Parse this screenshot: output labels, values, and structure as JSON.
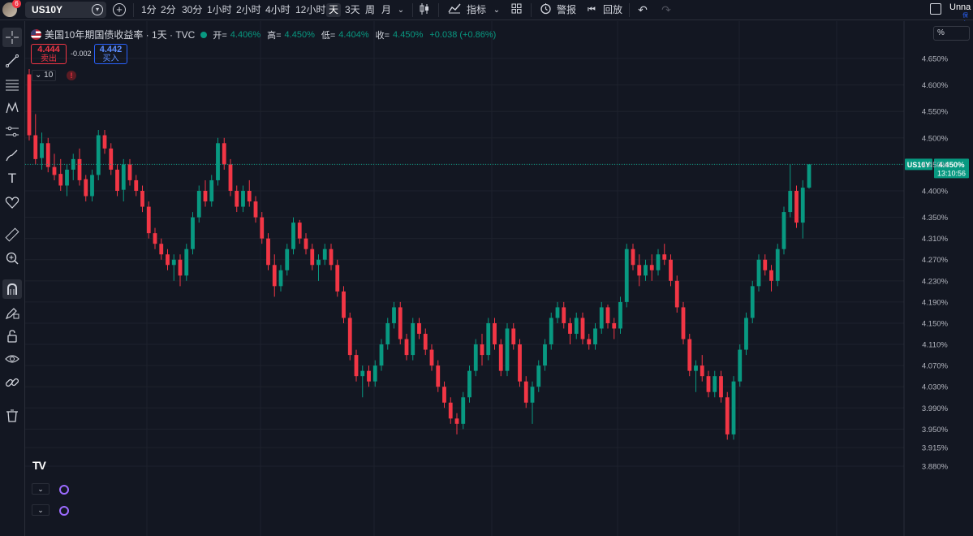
{
  "toolbar": {
    "avatar_badge": "6",
    "symbol": "US10Y",
    "intervals": [
      "1分",
      "2分",
      "30分",
      "1小时",
      "2小时",
      "4小时",
      "12小时",
      "天",
      "3天",
      "周",
      "月"
    ],
    "active_interval": "天",
    "indicators_label": "指标",
    "alerts_label": "警报",
    "replay_label": "回放",
    "layout_name": "Unna",
    "layout_sub": "保存"
  },
  "legend": {
    "title": "美国10年期国债收益率 · 1天 · TVC",
    "open_label": "开=",
    "open": "4.406%",
    "high_label": "高=",
    "high": "4.450%",
    "low_label": "低=",
    "low": "4.404%",
    "close_label": "收=",
    "close": "4.450%",
    "change": "+0.038 (+0.86%)"
  },
  "trade": {
    "bid": "4.444",
    "bid_label": "卖出",
    "spread": "-0.002",
    "ask": "4.442",
    "ask_label": "买入"
  },
  "indicator_count": "10",
  "scale_mode": "%",
  "colors": {
    "up": "#089981",
    "down": "#f23645",
    "background": "#131722",
    "grid": "#1e222d",
    "price_line": "#089981"
  },
  "icons": [
    "crosshair-icon",
    "trend-line-icon",
    "fib-icon",
    "pattern-icon",
    "forecast-icon",
    "brush-icon",
    "text-icon",
    "heart-icon",
    "ruler-icon",
    "zoom-icon",
    "magnet-icon",
    "lock-drawing-icon",
    "lock-icon",
    "eye-icon",
    "link-icon",
    "trash-icon"
  ],
  "chart_data": {
    "type": "candlestick",
    "title": "美国10年期国债收益率 · 1天 · TVC",
    "y_ticks": [
      "4.650%",
      "4.600%",
      "4.550%",
      "4.500%",
      "4.450%",
      "4.400%",
      "4.350%",
      "4.310%",
      "4.270%",
      "4.230%",
      "4.190%",
      "4.150%",
      "4.110%",
      "4.070%",
      "4.030%",
      "3.990%",
      "3.950%",
      "3.915%",
      "3.880%"
    ],
    "ylim": [
      3.872,
      4.668
    ],
    "last_price": {
      "symbol": "US10Y",
      "value": "4.450%",
      "countdown": "13:10:56"
    },
    "candles": [
      [
        4.62,
        4.63,
        4.495,
        4.505
      ],
      [
        4.505,
        4.545,
        4.45,
        4.46
      ],
      [
        4.462,
        4.51,
        4.44,
        4.49
      ],
      [
        4.49,
        4.5,
        4.435,
        4.445
      ],
      [
        4.445,
        4.47,
        4.42,
        4.43
      ],
      [
        4.432,
        4.46,
        4.4,
        4.41
      ],
      [
        4.41,
        4.45,
        4.39,
        4.44
      ],
      [
        4.44,
        4.47,
        4.42,
        4.46
      ],
      [
        4.46,
        4.48,
        4.41,
        4.42
      ],
      [
        4.422,
        4.43,
        4.38,
        4.39
      ],
      [
        4.39,
        4.44,
        4.38,
        4.43
      ],
      [
        4.43,
        4.515,
        4.42,
        4.505
      ],
      [
        4.505,
        4.515,
        4.47,
        4.48
      ],
      [
        4.48,
        4.49,
        4.43,
        4.44
      ],
      [
        4.44,
        4.45,
        4.39,
        4.4
      ],
      [
        4.402,
        4.46,
        4.38,
        4.45
      ],
      [
        4.45,
        4.46,
        4.41,
        4.42
      ],
      [
        4.42,
        4.43,
        4.39,
        4.4
      ],
      [
        4.4,
        4.41,
        4.36,
        4.37
      ],
      [
        4.37,
        4.38,
        4.31,
        4.32
      ],
      [
        4.32,
        4.33,
        4.29,
        4.3
      ],
      [
        4.3,
        4.31,
        4.27,
        4.28
      ],
      [
        4.28,
        4.29,
        4.25,
        4.26
      ],
      [
        4.26,
        4.28,
        4.23,
        4.27
      ],
      [
        4.27,
        4.28,
        4.22,
        4.24
      ],
      [
        4.24,
        4.3,
        4.23,
        4.29
      ],
      [
        4.29,
        4.36,
        4.28,
        4.35
      ],
      [
        4.35,
        4.41,
        4.34,
        4.4
      ],
      [
        4.4,
        4.42,
        4.37,
        4.38
      ],
      [
        4.38,
        4.43,
        4.37,
        4.42
      ],
      [
        4.42,
        4.5,
        4.41,
        4.49
      ],
      [
        4.49,
        4.5,
        4.44,
        4.45
      ],
      [
        4.45,
        4.46,
        4.39,
        4.4
      ],
      [
        4.4,
        4.41,
        4.36,
        4.37
      ],
      [
        4.37,
        4.41,
        4.36,
        4.4
      ],
      [
        4.4,
        4.42,
        4.37,
        4.38
      ],
      [
        4.38,
        4.39,
        4.34,
        4.35
      ],
      [
        4.35,
        4.36,
        4.3,
        4.31
      ],
      [
        4.31,
        4.32,
        4.25,
        4.26
      ],
      [
        4.26,
        4.28,
        4.2,
        4.22
      ],
      [
        4.22,
        4.26,
        4.21,
        4.25
      ],
      [
        4.25,
        4.3,
        4.24,
        4.29
      ],
      [
        4.29,
        4.35,
        4.28,
        4.34
      ],
      [
        4.34,
        4.345,
        4.3,
        4.31
      ],
      [
        4.31,
        4.32,
        4.28,
        4.29
      ],
      [
        4.29,
        4.3,
        4.25,
        4.26
      ],
      [
        4.26,
        4.28,
        4.23,
        4.27
      ],
      [
        4.27,
        4.3,
        4.26,
        4.29
      ],
      [
        4.29,
        4.3,
        4.25,
        4.26
      ],
      [
        4.26,
        4.27,
        4.2,
        4.21
      ],
      [
        4.21,
        4.22,
        4.15,
        4.16
      ],
      [
        4.16,
        4.17,
        4.08,
        4.09
      ],
      [
        4.09,
        4.1,
        4.04,
        4.05
      ],
      [
        4.05,
        4.07,
        4.01,
        4.06
      ],
      [
        4.06,
        4.07,
        4.03,
        4.04
      ],
      [
        4.04,
        4.08,
        4.03,
        4.07
      ],
      [
        4.07,
        4.12,
        4.06,
        4.11
      ],
      [
        4.11,
        4.16,
        4.1,
        4.15
      ],
      [
        4.15,
        4.19,
        4.14,
        4.18
      ],
      [
        4.18,
        4.19,
        4.11,
        4.12
      ],
      [
        4.12,
        4.13,
        4.08,
        4.09
      ],
      [
        4.09,
        4.16,
        4.08,
        4.15
      ],
      [
        4.15,
        4.16,
        4.12,
        4.13
      ],
      [
        4.13,
        4.14,
        4.09,
        4.1
      ],
      [
        4.1,
        4.11,
        4.06,
        4.07
      ],
      [
        4.07,
        4.08,
        4.02,
        4.03
      ],
      [
        4.03,
        4.04,
        3.99,
        4.0
      ],
      [
        4.0,
        4.01,
        3.96,
        3.97
      ],
      [
        3.97,
        3.98,
        3.94,
        3.96
      ],
      [
        3.96,
        4.02,
        3.95,
        4.01
      ],
      [
        4.01,
        4.07,
        4.0,
        4.06
      ],
      [
        4.06,
        4.12,
        4.05,
        4.11
      ],
      [
        4.11,
        4.13,
        4.07,
        4.09
      ],
      [
        4.09,
        4.16,
        4.08,
        4.15
      ],
      [
        4.15,
        4.16,
        4.1,
        4.11
      ],
      [
        4.11,
        4.12,
        4.05,
        4.06
      ],
      [
        4.06,
        4.15,
        4.05,
        4.14
      ],
      [
        4.14,
        4.15,
        4.1,
        4.11
      ],
      [
        4.11,
        4.12,
        4.03,
        4.04
      ],
      [
        4.04,
        4.05,
        3.99,
        4.0
      ],
      [
        4.0,
        4.04,
        3.96,
        4.03
      ],
      [
        4.03,
        4.08,
        4.02,
        4.07
      ],
      [
        4.07,
        4.12,
        4.06,
        4.11
      ],
      [
        4.11,
        4.17,
        4.1,
        4.16
      ],
      [
        4.16,
        4.19,
        4.15,
        4.18
      ],
      [
        4.18,
        4.19,
        4.14,
        4.15
      ],
      [
        4.15,
        4.16,
        4.11,
        4.13
      ],
      [
        4.13,
        4.17,
        4.12,
        4.16
      ],
      [
        4.16,
        4.17,
        4.11,
        4.12
      ],
      [
        4.12,
        4.13,
        4.1,
        4.11
      ],
      [
        4.11,
        4.15,
        4.1,
        4.14
      ],
      [
        4.14,
        4.19,
        4.13,
        4.18
      ],
      [
        4.18,
        4.185,
        4.14,
        4.15
      ],
      [
        4.15,
        4.16,
        4.12,
        4.14
      ],
      [
        4.14,
        4.2,
        4.13,
        4.19
      ],
      [
        4.19,
        4.3,
        4.18,
        4.29
      ],
      [
        4.29,
        4.3,
        4.25,
        4.26
      ],
      [
        4.26,
        4.28,
        4.22,
        4.24
      ],
      [
        4.24,
        4.27,
        4.23,
        4.26
      ],
      [
        4.26,
        4.28,
        4.23,
        4.25
      ],
      [
        4.25,
        4.29,
        4.24,
        4.28
      ],
      [
        4.28,
        4.3,
        4.26,
        4.27
      ],
      [
        4.27,
        4.28,
        4.22,
        4.23
      ],
      [
        4.23,
        4.24,
        4.17,
        4.18
      ],
      [
        4.18,
        4.19,
        4.11,
        4.12
      ],
      [
        4.12,
        4.13,
        4.05,
        4.06
      ],
      [
        4.06,
        4.08,
        4.02,
        4.07
      ],
      [
        4.07,
        4.09,
        4.04,
        4.05
      ],
      [
        4.05,
        4.06,
        4.01,
        4.02
      ],
      [
        4.02,
        4.06,
        4.01,
        4.05
      ],
      [
        4.05,
        4.06,
        4.0,
        4.01
      ],
      [
        4.01,
        4.02,
        3.93,
        3.94
      ],
      [
        3.94,
        4.05,
        3.93,
        4.04
      ],
      [
        4.04,
        4.11,
        4.03,
        4.1
      ],
      [
        4.1,
        4.17,
        4.09,
        4.16
      ],
      [
        4.16,
        4.23,
        4.15,
        4.22
      ],
      [
        4.22,
        4.28,
        4.21,
        4.27
      ],
      [
        4.27,
        4.28,
        4.24,
        4.25
      ],
      [
        4.25,
        4.26,
        4.21,
        4.23
      ],
      [
        4.23,
        4.3,
        4.22,
        4.29
      ],
      [
        4.29,
        4.37,
        4.28,
        4.36
      ],
      [
        4.36,
        4.45,
        4.35,
        4.4
      ],
      [
        4.4,
        4.41,
        4.33,
        4.34
      ],
      [
        4.34,
        4.42,
        4.31,
        4.406
      ],
      [
        4.406,
        4.45,
        4.404,
        4.45
      ]
    ]
  }
}
